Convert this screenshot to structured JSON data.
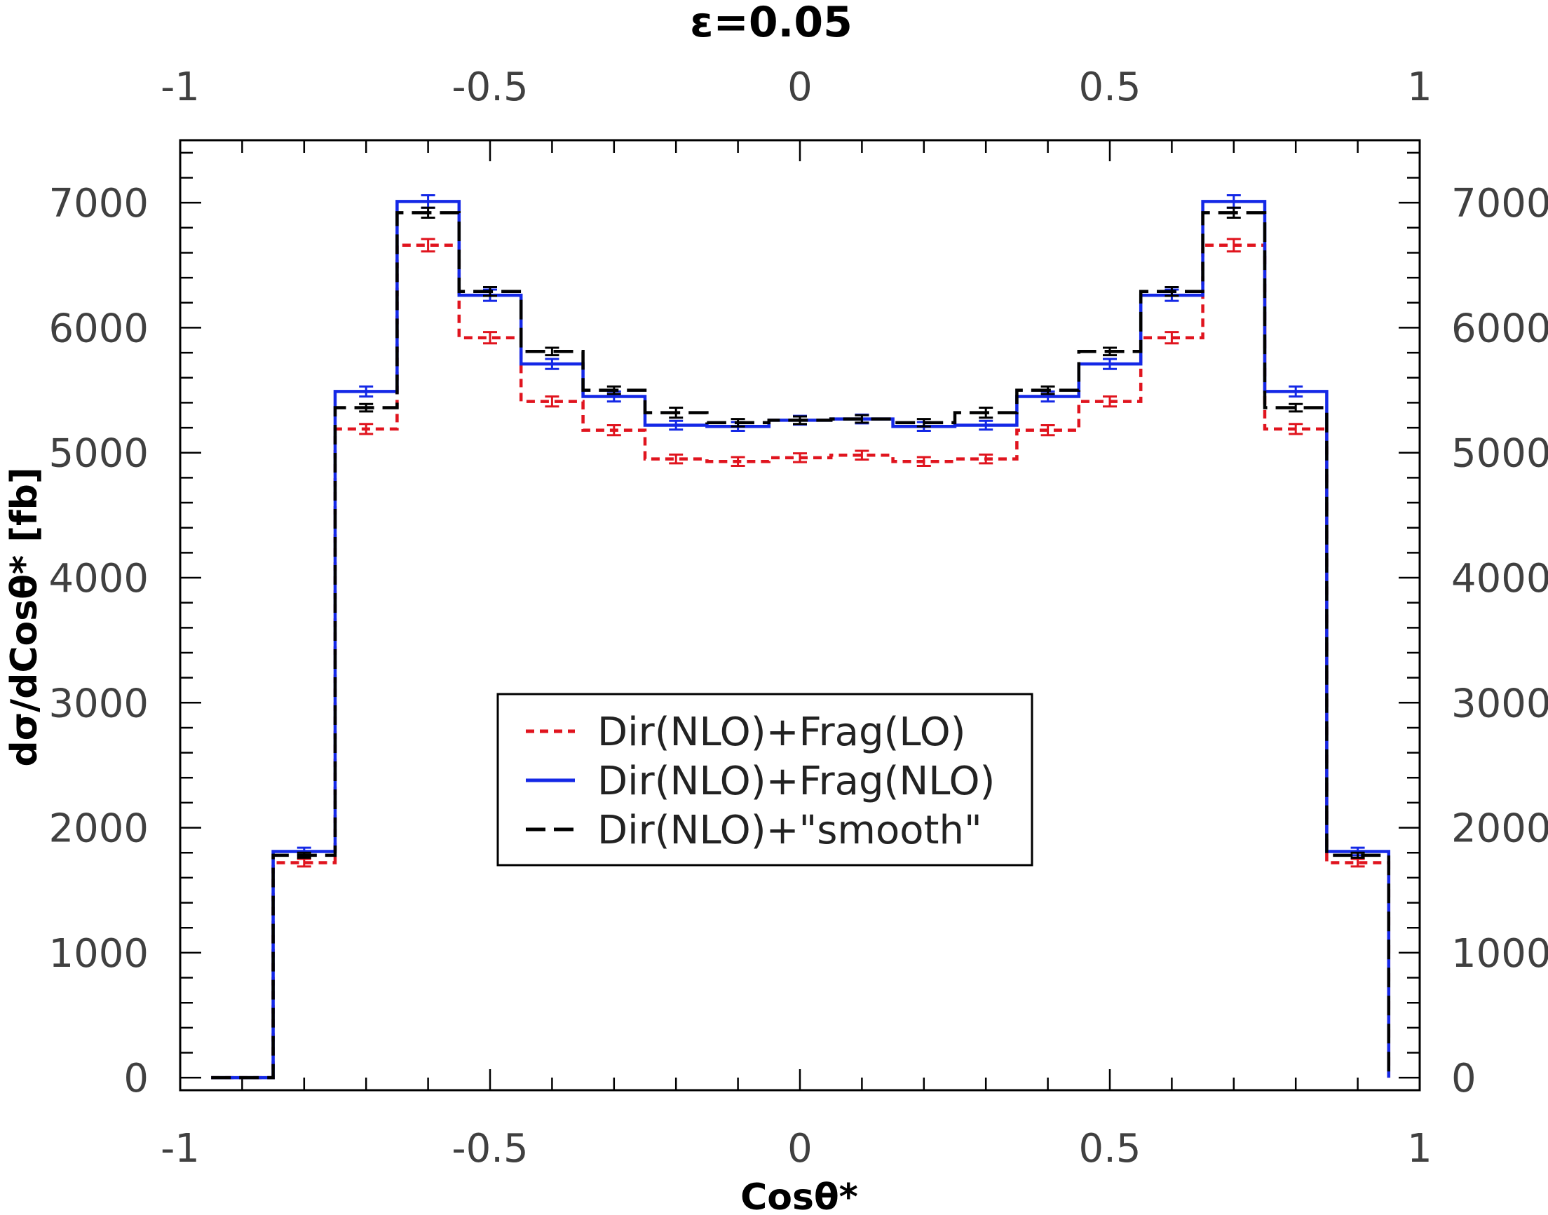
{
  "chart_data": {
    "type": "line",
    "step": true,
    "title": "ε=0.05",
    "xlabel": "Cosθ*",
    "ylabel": "dσ/dCosθ* [fb]",
    "xlim": [
      -1,
      1
    ],
    "ylim": [
      -100,
      7500
    ],
    "x_ticks": [
      -1,
      -0.5,
      0,
      0.5,
      1
    ],
    "x_tick_labels": [
      "-1",
      "-0.5",
      "0",
      "0.5",
      "1"
    ],
    "y_ticks": [
      0,
      1000,
      2000,
      3000,
      4000,
      5000,
      6000,
      7000
    ],
    "y_tick_labels": [
      "0",
      "1000",
      "2000",
      "3000",
      "4000",
      "5000",
      "6000",
      "7000"
    ],
    "bin_edges": [
      -0.95,
      -0.85,
      -0.75,
      -0.65,
      -0.55,
      -0.45,
      -0.35,
      -0.25,
      -0.15,
      -0.05,
      0.05,
      0.15,
      0.25,
      0.35,
      0.45,
      0.55,
      0.65,
      0.75,
      0.85,
      0.95
    ],
    "legend_position": "center",
    "series": [
      {
        "name": "Dir(NLO)+Frag(LO)",
        "color": "#e0141e",
        "style": "dotted",
        "values": [
          0,
          1720,
          5190,
          6660,
          5920,
          5410,
          5180,
          4950,
          4930,
          4960,
          4980,
          4930,
          4950,
          5180,
          5410,
          5920,
          6660,
          5190,
          1720
        ],
        "errors": [
          0,
          30,
          40,
          50,
          45,
          40,
          40,
          35,
          35,
          35,
          35,
          35,
          35,
          40,
          40,
          45,
          50,
          40,
          30
        ]
      },
      {
        "name": "Dir(NLO)+Frag(NLO)",
        "color": "#1428e6",
        "style": "solid",
        "values": [
          0,
          1810,
          5490,
          7010,
          6260,
          5710,
          5450,
          5220,
          5210,
          5260,
          5270,
          5210,
          5220,
          5450,
          5710,
          6260,
          7010,
          5490,
          1810
        ],
        "errors": [
          0,
          30,
          40,
          50,
          45,
          40,
          40,
          35,
          35,
          35,
          35,
          35,
          35,
          40,
          40,
          45,
          50,
          40,
          30
        ]
      },
      {
        "name": "Dir(NLO)+\"smooth\"",
        "color": "#000000",
        "style": "dashed",
        "values": [
          0,
          1780,
          5360,
          6920,
          6290,
          5810,
          5500,
          5320,
          5240,
          5260,
          5270,
          5240,
          5320,
          5500,
          5810,
          6290,
          6920,
          5360,
          1780
        ],
        "errors": [
          0,
          20,
          30,
          40,
          35,
          30,
          30,
          40,
          30,
          30,
          30,
          30,
          40,
          30,
          30,
          35,
          40,
          30,
          20
        ]
      }
    ]
  }
}
